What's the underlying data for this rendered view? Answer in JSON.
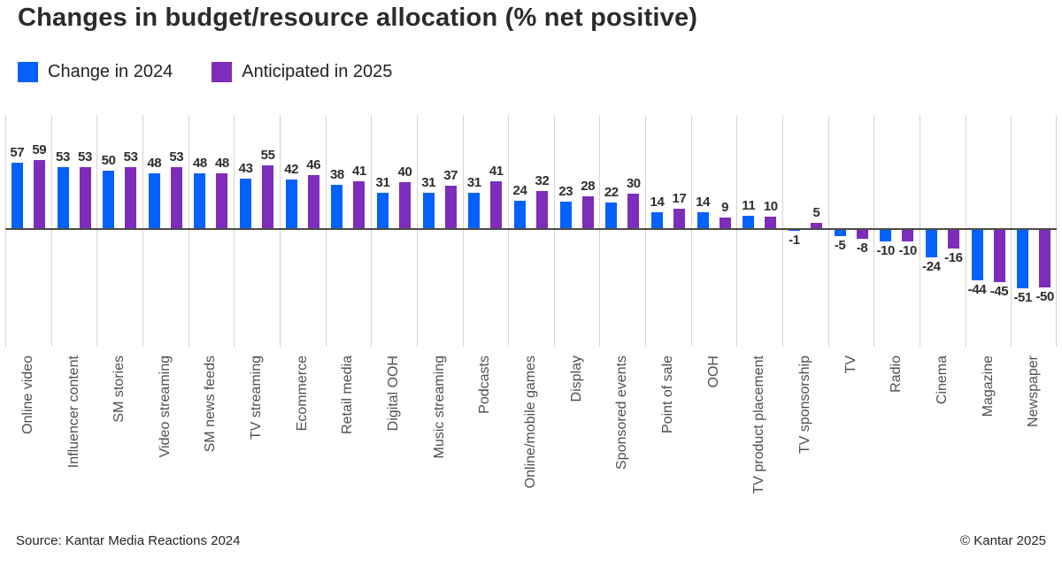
{
  "title": "Changes in budget/resource allocation (% net positive)",
  "legend": [
    {
      "label": "Change in 2024",
      "color": "#0561fb"
    },
    {
      "label": "Anticipated in 2025",
      "color": "#7e2cba"
    }
  ],
  "footer": {
    "source": "Source: Kantar Media Reactions 2024",
    "copyright": "© Kantar 2025"
  },
  "chart_data": {
    "type": "bar",
    "title": "Changes in budget/resource allocation (% net positive)",
    "categories": [
      "Online video",
      "Influencer content",
      "SM stories",
      "Video streaming",
      "SM news feeds",
      "TV streaming",
      "Ecommerce",
      "Retail media",
      "Digital OOH",
      "Music streaming",
      "Podcasts",
      "Online/mobile games",
      "Display",
      "Sponsored events",
      "Point of sale",
      "OOH",
      "TV product placement",
      "TV sponsorship",
      "TV",
      "Radio",
      "Cinema",
      "Magazine",
      "Newspaper"
    ],
    "series": [
      {
        "name": "Change in 2024",
        "color": "#0561fb",
        "values": [
          57,
          53,
          50,
          48,
          48,
          43,
          42,
          38,
          31,
          31,
          31,
          24,
          23,
          22,
          14,
          14,
          11,
          -1,
          -5,
          -10,
          -24,
          -44,
          -51
        ]
      },
      {
        "name": "Anticipated in 2025",
        "color": "#7e2cba",
        "values": [
          59,
          53,
          53,
          53,
          48,
          55,
          46,
          41,
          40,
          37,
          41,
          32,
          28,
          30,
          17,
          9,
          10,
          5,
          -8,
          -10,
          -16,
          -45,
          -50
        ]
      }
    ],
    "xlabel": "",
    "ylabel": "% net positive",
    "ylim": [
      -60,
      70
    ],
    "value_labels": true,
    "grid": "vertical category separators only",
    "legend_position": "top-left",
    "gridline_color": "#d8d4ca",
    "zero_axis_color": "#4a4a48"
  }
}
